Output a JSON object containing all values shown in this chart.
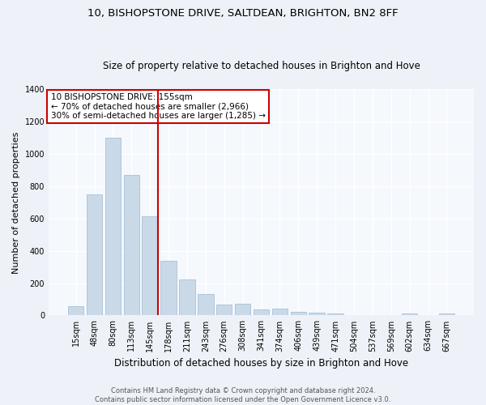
{
  "title": "10, BISHOPSTONE DRIVE, SALTDEAN, BRIGHTON, BN2 8FF",
  "subtitle": "Size of property relative to detached houses in Brighton and Hove",
  "xlabel": "Distribution of detached houses by size in Brighton and Hove",
  "ylabel": "Number of detached properties",
  "footnote": "Contains HM Land Registry data © Crown copyright and database right 2024.\nContains public sector information licensed under the Open Government Licence v3.0.",
  "bin_labels": [
    "15sqm",
    "48sqm",
    "80sqm",
    "113sqm",
    "145sqm",
    "178sqm",
    "211sqm",
    "243sqm",
    "276sqm",
    "308sqm",
    "341sqm",
    "374sqm",
    "406sqm",
    "439sqm",
    "471sqm",
    "504sqm",
    "537sqm",
    "569sqm",
    "602sqm",
    "634sqm",
    "667sqm"
  ],
  "bar_values": [
    55,
    750,
    1100,
    870,
    615,
    340,
    225,
    135,
    65,
    70,
    35,
    40,
    22,
    15,
    10,
    2,
    0,
    0,
    10,
    0,
    10
  ],
  "bar_color": "#c9d9e8",
  "bar_edge_color": "#a0b8d0",
  "property_bin_index": 4,
  "vline_color": "#cc0000",
  "annotation_line1": "10 BISHOPSTONE DRIVE: 155sqm",
  "annotation_line2": "← 70% of detached houses are smaller (2,966)",
  "annotation_line3": "30% of semi-detached houses are larger (1,285) →",
  "annotation_box_color": "#ffffff",
  "annotation_box_edgecolor": "#cc0000",
  "ylim": [
    0,
    1400
  ],
  "yticks": [
    0,
    200,
    400,
    600,
    800,
    1000,
    1200,
    1400
  ],
  "bg_color": "#eef2f8",
  "plot_bg_color": "#f5f8fd",
  "grid_color": "#ffffff",
  "title_fontsize": 9.5,
  "subtitle_fontsize": 8.5,
  "xlabel_fontsize": 8.5,
  "ylabel_fontsize": 8,
  "tick_fontsize": 7,
  "annotation_fontsize": 7.5,
  "footnote_fontsize": 6
}
